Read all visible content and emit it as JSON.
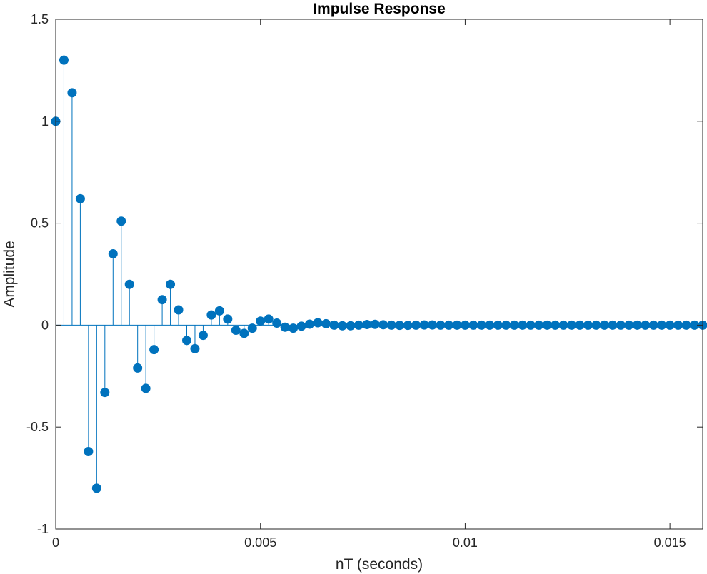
{
  "colors": {
    "series": "#0072BD",
    "axes": "#262626",
    "background": "#ffffff"
  },
  "chart_data": {
    "type": "stem",
    "title": "Impulse Response",
    "xlabel": "nT (seconds)",
    "ylabel": "Amplitude",
    "xlim": [
      0,
      0.0158
    ],
    "ylim": [
      -1,
      1.5
    ],
    "grid": false,
    "marker": "filled-circle",
    "xticks": [
      0,
      0.005,
      0.01,
      0.015
    ],
    "xtick_labels": [
      "0",
      "0.005",
      "0.01",
      "0.015"
    ],
    "yticks": [
      -1,
      -0.5,
      0,
      0.5,
      1,
      1.5
    ],
    "ytick_labels": [
      "-1",
      "-0.5",
      "0",
      "0.5",
      "1",
      "1.5"
    ],
    "sample_period": 0.0002,
    "series": [
      {
        "values": [
          1.0,
          1.3,
          1.14,
          0.62,
          -0.62,
          -0.8,
          -0.33,
          0.35,
          0.51,
          0.2,
          -0.21,
          -0.31,
          -0.12,
          0.125,
          0.2,
          0.075,
          -0.075,
          -0.115,
          -0.05,
          0.05,
          0.07,
          0.03,
          -0.025,
          -0.04,
          -0.015,
          0.02,
          0.03,
          0.01,
          -0.01,
          -0.015,
          -0.005,
          0.005,
          0.012,
          0.007,
          0.0,
          -0.003,
          -0.003,
          0.0,
          0.003,
          0.004,
          0.002,
          0.0,
          -0.001,
          -0.001,
          0.0,
          0.001,
          0.001,
          0.0,
          0.0,
          0.0,
          0.0,
          0.0,
          0.0,
          0.0,
          0.0,
          0.0,
          0.0,
          0.0,
          0.0,
          0.0,
          0.0,
          0.0,
          0.0,
          0.0,
          0.0,
          0.0,
          0.0,
          0.0,
          0.0,
          0.0,
          0.0,
          0.0,
          0.0,
          0.0,
          0.0,
          0.0,
          0.0,
          0.0,
          0.0,
          0.0
        ]
      }
    ]
  }
}
